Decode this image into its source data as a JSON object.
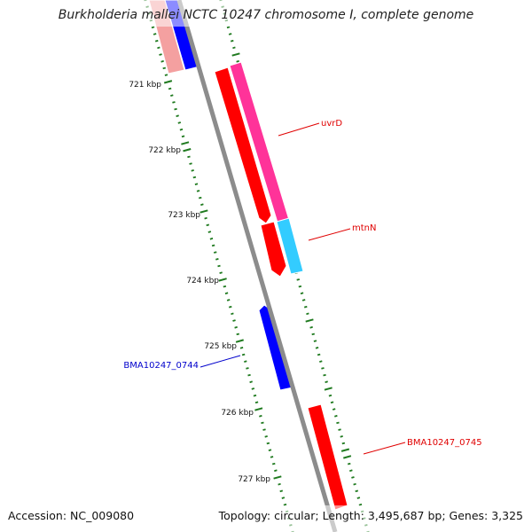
{
  "title": "Burkholderia mallei NCTC 10247 chromosome I, complete genome",
  "accession": "Accession: NC_009080",
  "summary": "Topology: circular; Length: 3,495,687 bp; Genes: 3,325",
  "colors": {
    "backbone": "#8c8c8c",
    "tick": "#1f7a1f",
    "forward_gene": "#ff0000",
    "reverse_gene": "#0000ff",
    "forward_cds": "#ff3399",
    "reverse_cds": "#33ccff",
    "label_red": "#e00000",
    "label_blue": "#0000cc"
  },
  "kbp_labels": [
    "721 kbp",
    "722 kbp",
    "723 kbp",
    "724 kbp",
    "725 kbp",
    "726 kbp",
    "727 kbp"
  ],
  "gene_labels": {
    "uvrD": "uvrD",
    "mtnN": "mtnN",
    "bma0744": "BMA10247_0744",
    "bma0745": "BMA10247_0745"
  }
}
